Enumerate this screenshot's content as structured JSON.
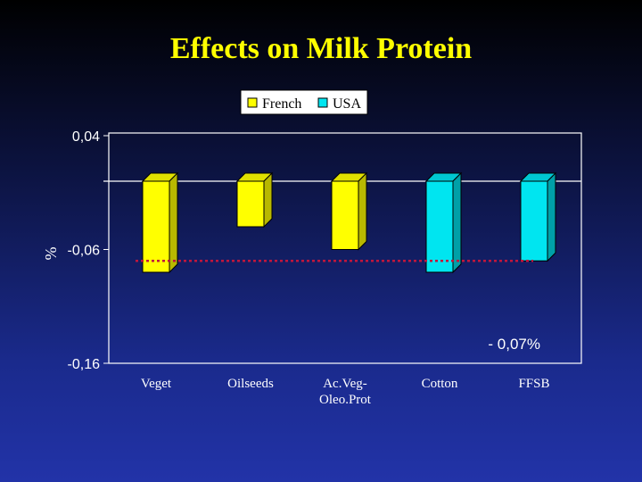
{
  "slide": {
    "title": "Effects on Milk Protein"
  },
  "colors": {
    "french": "#ffff00",
    "usa": "#00e5f0",
    "title": "#ffff00",
    "axis_text": "#ffffff",
    "reference_line": "#c0163c",
    "plot_border": "#ffffff"
  },
  "chart_data": {
    "type": "bar",
    "categories": [
      "Veget",
      "Oilseeds",
      "Ac.Veg-\nOleo.Prot",
      "Cotton",
      "FFSB"
    ],
    "series": [
      {
        "name": "French",
        "values": [
          -0.08,
          null,
          null,
          null,
          null
        ]
      },
      {
        "name": "French",
        "values": [
          null,
          -0.04,
          -0.06,
          null,
          null
        ]
      },
      {
        "name": "USA",
        "values": [
          null,
          null,
          null,
          -0.08,
          -0.07
        ]
      }
    ],
    "bars": [
      {
        "category": "Veget",
        "series": "French",
        "value": -0.08
      },
      {
        "category": "Oilseeds",
        "series": "French",
        "value": -0.04
      },
      {
        "category": "Ac.Veg-\nOleo.Prot",
        "series": "French",
        "value": -0.06
      },
      {
        "category": "Cotton",
        "series": "USA",
        "value": -0.08
      },
      {
        "category": "FFSB",
        "series": "USA",
        "value": -0.07
      }
    ],
    "legend": [
      "French",
      "USA"
    ],
    "legend_position": "top",
    "ylabel": "%",
    "yticks": [
      "0,04",
      "-0,06",
      "-0,16"
    ],
    "ytick_values": [
      0.04,
      -0.06,
      -0.16
    ],
    "ylim": [
      -0.16,
      0.04
    ],
    "grid": false,
    "reference_line": {
      "value": -0.07,
      "label": "- 0,07%"
    }
  }
}
